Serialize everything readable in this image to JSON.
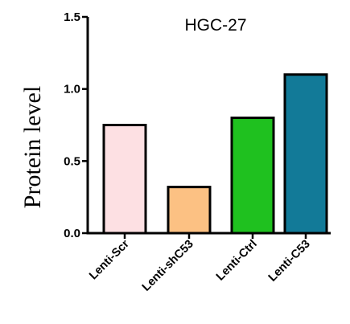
{
  "chart_data": {
    "type": "bar",
    "title": "HGC-27",
    "xlabel": "",
    "ylabel": "Protein level",
    "categories": [
      "Lenti-Scr",
      "Lenti-shC53",
      "Lenti-Ctrl",
      "Lenti-C53"
    ],
    "values": [
      0.75,
      0.32,
      0.8,
      1.1
    ],
    "colors": [
      "#fde0e3",
      "#fcc183",
      "#1fc11f",
      "#127a98"
    ],
    "ylim": [
      0,
      1.5
    ],
    "yticks": [
      "0.0",
      "0.5",
      "1.0",
      "1.5"
    ],
    "grid": false,
    "legend": "none"
  }
}
